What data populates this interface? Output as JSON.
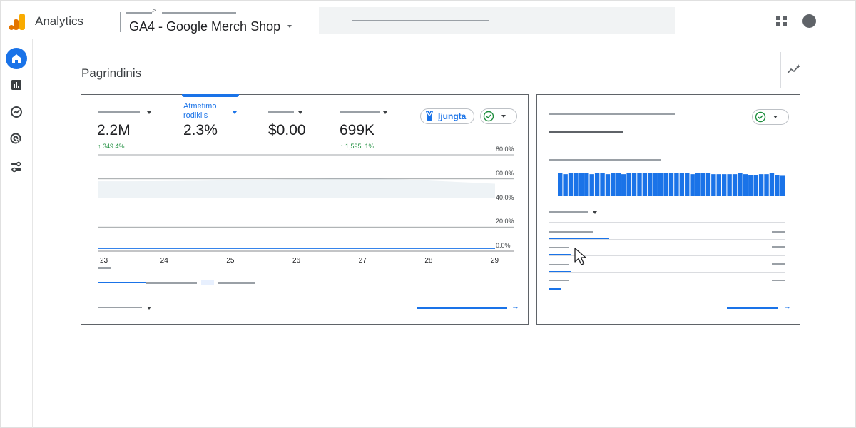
{
  "app": {
    "name": "Analytics"
  },
  "header": {
    "property": "GA4 - Google Merch Shop"
  },
  "page": {
    "title": "Pagrindinis"
  },
  "metrics": [
    {
      "title": "",
      "value": "2.2M",
      "delta": "↑ 349.4%"
    },
    {
      "title": "Atmetimo rodiklis",
      "value": "2.3%",
      "delta": ""
    },
    {
      "title": "",
      "value": "$0.00",
      "delta": ""
    },
    {
      "title": "",
      "value": "699K",
      "delta": "↑ 1,595. 1%"
    }
  ],
  "chip": {
    "on_label": "Įjungta"
  },
  "chart_data": {
    "type": "line",
    "x": [
      "23",
      "24",
      "25",
      "26",
      "27",
      "28",
      "29"
    ],
    "y_ticks": [
      "80.0%",
      "60.0%",
      "40.0%",
      "20.0%",
      "0.0%"
    ],
    "ylim": [
      0,
      80
    ],
    "series": [
      {
        "values": [
          2.3,
          2.3,
          2.3,
          2.3,
          2.3,
          2.3,
          2.3
        ]
      }
    ]
  },
  "side_bars": {
    "values": [
      28,
      27,
      28,
      28,
      28,
      28,
      27,
      28,
      28,
      27,
      28,
      28,
      27,
      28,
      28,
      28,
      28,
      28,
      28,
      28,
      28,
      28,
      28,
      28,
      28,
      27,
      28,
      28,
      28,
      27,
      27,
      27,
      27,
      27,
      28,
      27,
      26,
      26,
      27,
      27,
      28,
      26,
      25
    ]
  },
  "colors": {
    "accent": "#1a73e8",
    "positive": "#1e8e3e",
    "active_nav": "#1a73e8"
  },
  "icons": {
    "nav": [
      "home-icon",
      "reports-icon",
      "explore-icon",
      "advertising-icon",
      "configure-icon"
    ],
    "header": [
      "apps-grid-icon",
      "account-avatar-icon"
    ]
  }
}
